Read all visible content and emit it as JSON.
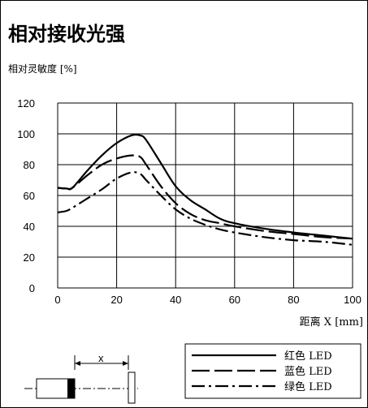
{
  "header": {
    "title": "相对接收光强"
  },
  "chart_data": {
    "type": "line",
    "ylabel": "相对灵敏度 [%]",
    "xlabel": "距离 X [mm]",
    "xlim": [
      0,
      100
    ],
    "ylim": [
      0,
      120
    ],
    "xticks": [
      "0",
      "20",
      "40",
      "60",
      "80",
      "100"
    ],
    "yticks": [
      "0",
      "20",
      "40",
      "60",
      "80",
      "100",
      "120"
    ],
    "grid": true,
    "legend_position": "bottom-right",
    "series": [
      {
        "name": "红色 LED",
        "style": "solid",
        "x": [
          0,
          3,
          5,
          10,
          15,
          20,
          25,
          28,
          30,
          35,
          40,
          45,
          50,
          55,
          60,
          70,
          80,
          90,
          100
        ],
        "y": [
          65,
          64.5,
          65,
          76,
          86,
          94,
          99,
          99,
          96,
          81,
          66,
          57,
          51,
          45,
          42,
          38.5,
          36,
          34,
          32
        ]
      },
      {
        "name": "蓝色 LED",
        "style": "long-dash",
        "x": [
          0,
          3,
          5,
          10,
          15,
          20,
          25,
          28,
          30,
          35,
          40,
          45,
          50,
          55,
          60,
          70,
          80,
          90,
          100
        ],
        "y": [
          65,
          64.5,
          65,
          73,
          80,
          84,
          86,
          85,
          80,
          66,
          55,
          48,
          44,
          42,
          40,
          37,
          35,
          33,
          32
        ]
      },
      {
        "name": "绿色 LED",
        "style": "dash-dot",
        "x": [
          0,
          3,
          5,
          10,
          15,
          20,
          25,
          28,
          30,
          35,
          40,
          45,
          50,
          55,
          60,
          70,
          80,
          90,
          100
        ],
        "y": [
          49,
          50,
          52,
          58,
          64,
          71,
          75,
          74,
          70,
          60,
          51,
          45,
          41,
          38,
          36,
          33,
          31,
          30,
          28
        ]
      }
    ],
    "diagram": {
      "distance_label": "x"
    }
  }
}
